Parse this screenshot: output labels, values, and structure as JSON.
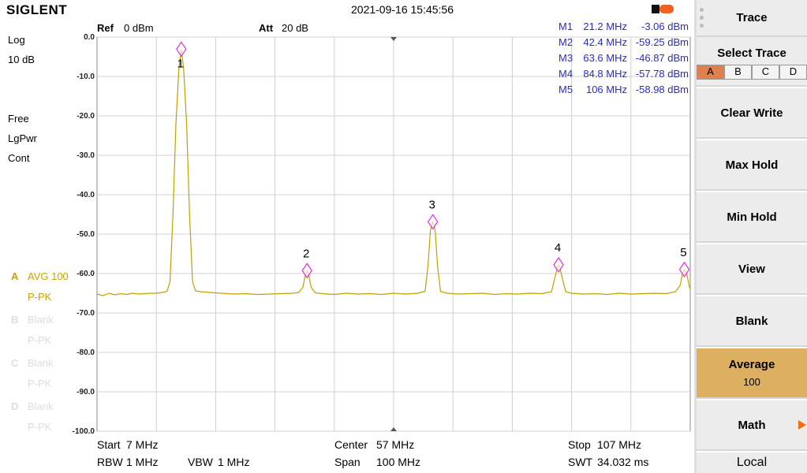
{
  "ui": {
    "brand": "SIGLENT",
    "datetime": "2021-09-16 15:45:56",
    "ref_label": "Ref",
    "ref_value": "0 dBm",
    "att_label": "Att",
    "att_value": "20 dB",
    "left": [
      "Log",
      "10 dB",
      "Free",
      "LgPwr",
      "Cont"
    ],
    "traces": [
      {
        "letter": "A",
        "mode": "AVG 100",
        "detector": "P-PK"
      },
      {
        "letter": "B",
        "mode": "Blank",
        "detector": "P-PK"
      },
      {
        "letter": "C",
        "mode": "Blank",
        "detector": "P-PK"
      },
      {
        "letter": "D",
        "mode": "Blank",
        "detector": "P-PK"
      }
    ],
    "marker_table": [
      [
        "M1",
        "21.2 MHz",
        "-3.06 dBm"
      ],
      [
        "M2",
        "42.4 MHz",
        "-59.25 dBm"
      ],
      [
        "M3",
        "63.6 MHz",
        "-46.87 dBm"
      ],
      [
        "M4",
        "84.8 MHz",
        "-57.78 dBm"
      ],
      [
        "M5",
        "106 MHz",
        "-58.98 dBm"
      ]
    ],
    "footer": {
      "start_label": "Start",
      "start": "7 MHz",
      "center_label": "Center",
      "center": "57 MHz",
      "stop_label": "Stop",
      "stop": "107 MHz",
      "rbw_label": "RBW",
      "rbw": "1 MHz",
      "vbw_label": "VBW",
      "vbw": "1 MHz",
      "span_label": "Span",
      "span": "100 MHz",
      "swt_label": "SWT",
      "swt": "34.032 ms"
    },
    "menu": {
      "title": "Trace",
      "select_trace": "Select Trace",
      "trace_letters": [
        "A",
        "B",
        "C",
        "D"
      ],
      "items": [
        "Clear Write",
        "Max Hold",
        "Min Hold",
        "View",
        "Blank"
      ],
      "average": "Average",
      "average_value": "100",
      "math": "Math",
      "local": "Local"
    }
  },
  "chart_data": {
    "type": "line",
    "x": [
      7,
      8,
      9,
      10,
      11,
      12,
      13,
      14,
      15,
      16,
      17,
      18,
      18.8,
      19.3,
      19.8,
      20.3,
      20.8,
      21.2,
      21.6,
      22.1,
      22.6,
      23.1,
      23.6,
      24.5,
      26,
      28,
      30,
      32,
      34,
      36,
      38,
      40,
      41,
      41.7,
      42.1,
      42.4,
      42.7,
      43.1,
      43.8,
      45,
      47,
      49,
      51,
      53,
      55,
      57,
      59,
      61,
      62.3,
      62.8,
      63.2,
      63.6,
      64.0,
      64.4,
      64.9,
      66,
      68,
      70,
      72,
      74,
      76,
      78,
      80,
      82,
      83.6,
      84.2,
      84.6,
      84.8,
      85.0,
      85.4,
      86.0,
      87,
      89,
      91,
      93,
      95,
      97,
      99,
      101,
      103,
      104.5,
      105.3,
      105.7,
      106,
      106.4,
      106.8,
      107
    ],
    "series": [
      {
        "color": "#bfa100",
        "values": [
          -65.2,
          -65.6,
          -65.0,
          -65.4,
          -65.1,
          -65.3,
          -65.0,
          -65.2,
          -65.1,
          -65.0,
          -65.0,
          -64.8,
          -64.5,
          -62,
          -45,
          -22,
          -8,
          -3.1,
          -8,
          -22,
          -45,
          -62,
          -64.4,
          -64.6,
          -64.8,
          -65.0,
          -65.2,
          -65.1,
          -65.3,
          -65.2,
          -65.1,
          -65.0,
          -64.8,
          -63.5,
          -60.5,
          -59.3,
          -60.5,
          -63.5,
          -64.9,
          -65.1,
          -65.3,
          -65.0,
          -65.2,
          -65.1,
          -65.3,
          -65.0,
          -65.2,
          -65.0,
          -64.5,
          -58,
          -49,
          -46.9,
          -49,
          -58,
          -64.5,
          -65.0,
          -65.2,
          -65.1,
          -65.0,
          -65.3,
          -65.1,
          -65.2,
          -65.0,
          -65.1,
          -64.6,
          -61,
          -58.3,
          -57.8,
          -58.3,
          -61,
          -64.6,
          -65.0,
          -65.2,
          -65.1,
          -65.3,
          -65.0,
          -65.2,
          -65.1,
          -65.0,
          -65.1,
          -64.6,
          -63,
          -60,
          -59,
          -60,
          -63,
          -64
        ]
      }
    ],
    "markers": [
      {
        "label": "1",
        "x": 21.2,
        "y": -3.06
      },
      {
        "label": "2",
        "x": 42.4,
        "y": -59.25
      },
      {
        "label": "3",
        "x": 63.6,
        "y": -46.87
      },
      {
        "label": "4",
        "x": 84.8,
        "y": -57.78
      },
      {
        "label": "5",
        "x": 106,
        "y": -58.98
      }
    ],
    "marker_color": "#e030e0",
    "xlim": [
      7,
      107
    ],
    "ylim": [
      -100,
      0
    ],
    "yticks": [
      {
        "value": 0,
        "label": "0.0"
      },
      {
        "value": -10,
        "label": "-10.0"
      },
      {
        "value": -20,
        "label": "-20.0"
      },
      {
        "value": -30,
        "label": "-30.0"
      },
      {
        "value": -40,
        "label": "-40.0"
      },
      {
        "value": -50,
        "label": "-50.0"
      },
      {
        "value": -60,
        "label": "-60.0"
      },
      {
        "value": -70,
        "label": "-70.0"
      },
      {
        "value": -80,
        "label": "-80.0"
      },
      {
        "value": -90,
        "label": "-90.0"
      },
      {
        "value": -100,
        "label": "-100.0"
      }
    ],
    "grid": true
  }
}
